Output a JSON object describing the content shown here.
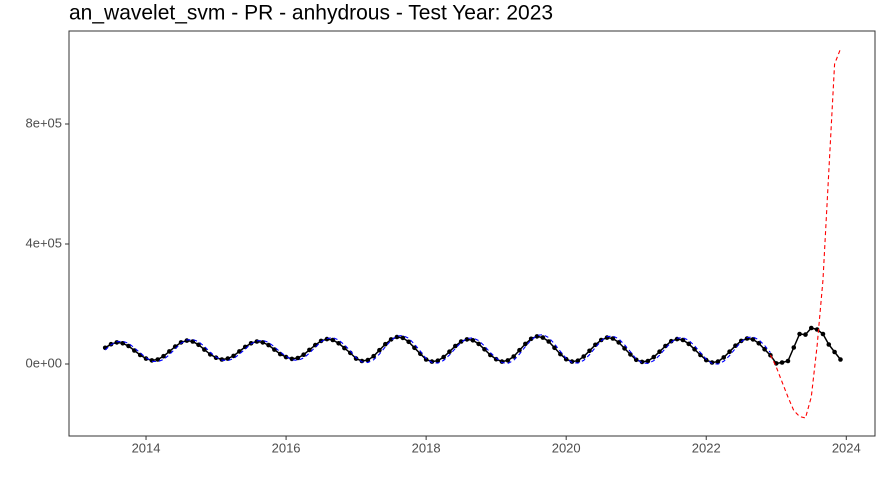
{
  "chart_data": {
    "type": "line",
    "title": "an_wavelet_svm - PR - anhydrous - Test Year: 2023",
    "x": [
      2013.417,
      2013.5,
      2013.583,
      2013.667,
      2013.75,
      2013.833,
      2013.917,
      2014,
      2014.083,
      2014.167,
      2014.25,
      2014.333,
      2014.417,
      2014.5,
      2014.583,
      2014.667,
      2014.75,
      2014.833,
      2014.917,
      2015,
      2015.083,
      2015.167,
      2015.25,
      2015.333,
      2015.417,
      2015.5,
      2015.583,
      2015.667,
      2015.75,
      2015.833,
      2015.917,
      2016,
      2016.083,
      2016.167,
      2016.25,
      2016.333,
      2016.417,
      2016.5,
      2016.583,
      2016.667,
      2016.75,
      2016.833,
      2016.917,
      2017,
      2017.083,
      2017.167,
      2017.25,
      2017.333,
      2017.417,
      2017.5,
      2017.583,
      2017.667,
      2017.75,
      2017.833,
      2017.917,
      2018,
      2018.083,
      2018.167,
      2018.25,
      2018.333,
      2018.417,
      2018.5,
      2018.583,
      2018.667,
      2018.75,
      2018.833,
      2018.917,
      2019,
      2019.083,
      2019.167,
      2019.25,
      2019.333,
      2019.417,
      2019.5,
      2019.583,
      2019.667,
      2019.75,
      2019.833,
      2019.917,
      2020,
      2020.083,
      2020.167,
      2020.25,
      2020.333,
      2020.417,
      2020.5,
      2020.583,
      2020.667,
      2020.75,
      2020.833,
      2020.917,
      2021,
      2021.083,
      2021.167,
      2021.25,
      2021.333,
      2021.417,
      2021.5,
      2021.583,
      2021.667,
      2021.75,
      2021.833,
      2021.917,
      2022,
      2022.083,
      2022.167,
      2022.25,
      2022.333,
      2022.417,
      2022.5,
      2022.583,
      2022.667,
      2022.75,
      2022.833,
      2022.917,
      2023,
      2023.083,
      2023.167,
      2023.25,
      2023.333,
      2023.417,
      2023.5,
      2023.583,
      2023.667,
      2023.75,
      2023.833,
      2023.917
    ],
    "series": [
      {
        "color": "#000000",
        "line_style": "solid",
        "markers": true,
        "values": [
          54000,
          66000,
          72000,
          69000,
          60000,
          45000,
          30000,
          18000,
          12000,
          15000,
          26000,
          42000,
          58000,
          72000,
          78000,
          75000,
          64000,
          48000,
          32000,
          21000,
          15000,
          18000,
          27000,
          42000,
          57000,
          69000,
          75000,
          72000,
          63000,
          48000,
          33000,
          23000,
          17000,
          20000,
          31000,
          47000,
          63000,
          77000,
          83000,
          80000,
          69000,
          53000,
          37000,
          18000,
          10000,
          13000,
          26000,
          46000,
          66000,
          82000,
          90000,
          87000,
          74000,
          54000,
          34000,
          15000,
          8000,
          11000,
          23000,
          41000,
          60000,
          75000,
          82000,
          79000,
          67000,
          49000,
          30000,
          16000,
          8000,
          12000,
          25000,
          46000,
          67000,
          84000,
          92000,
          88000,
          75000,
          54000,
          33000,
          16000,
          8000,
          11000,
          25000,
          44000,
          64000,
          80000,
          88000,
          85000,
          72000,
          52000,
          32000,
          14000,
          7000,
          10000,
          23000,
          41000,
          60000,
          76000,
          83000,
          80000,
          67000,
          49000,
          30000,
          13000,
          5000,
          8000,
          22000,
          41000,
          61000,
          77000,
          85000,
          82000,
          69000,
          49000,
          29000,
          2000,
          5000,
          10000,
          55000,
          100000,
          98000,
          120000,
          115000,
          100000,
          65000,
          40000,
          15000
        ]
      },
      {
        "color": "#0000ff",
        "line_style": "dashed",
        "markers": false,
        "values": [
          47000,
          64000,
          74000,
          76000,
          69000,
          54000,
          37000,
          21000,
          9000,
          8000,
          15000,
          31000,
          51000,
          69000,
          80000,
          82000,
          74000,
          59000,
          39000,
          23000,
          13000,
          11000,
          18000,
          33000,
          50000,
          67000,
          77000,
          79000,
          72000,
          57000,
          40000,
          26000,
          14000,
          12000,
          20000,
          36000,
          56000,
          74000,
          85000,
          88000,
          80000,
          64000,
          44000,
          21000,
          7000,
          5000,
          14000,
          33000,
          57000,
          79000,
          93000,
          95000,
          86000,
          66000,
          43000,
          18000,
          5000,
          3000,
          12000,
          30000,
          52000,
          72000,
          85000,
          87000,
          78000,
          60000,
          38000,
          20000,
          5000,
          2000,
          12000,
          33000,
          58000,
          80000,
          95000,
          98000,
          88000,
          67000,
          42000,
          19000,
          5000,
          3000,
          12000,
          31000,
          55000,
          77000,
          91000,
          93000,
          84000,
          64000,
          41000,
          17000,
          4000,
          2000,
          11000,
          29000,
          52000,
          72000,
          86000,
          88000,
          79000,
          61000,
          38000,
          16000,
          2000,
          -400,
          9000,
          28000,
          52000,
          74000,
          88000,
          90000,
          81000,
          62000,
          38000,
          null,
          null,
          null,
          null,
          null,
          null,
          null,
          null,
          null,
          null,
          null,
          null
        ]
      },
      {
        "color": "#ff0000",
        "line_style": "dashed",
        "markers": false,
        "values": [
          null,
          null,
          null,
          null,
          null,
          null,
          null,
          null,
          null,
          null,
          null,
          null,
          null,
          null,
          null,
          null,
          null,
          null,
          null,
          null,
          null,
          null,
          null,
          null,
          null,
          null,
          null,
          null,
          null,
          null,
          null,
          null,
          null,
          null,
          null,
          null,
          null,
          null,
          null,
          null,
          null,
          null,
          null,
          null,
          null,
          null,
          null,
          null,
          null,
          null,
          null,
          null,
          null,
          null,
          null,
          null,
          null,
          null,
          null,
          null,
          null,
          null,
          null,
          null,
          null,
          null,
          null,
          null,
          null,
          null,
          null,
          null,
          null,
          null,
          null,
          null,
          null,
          null,
          null,
          null,
          null,
          null,
          null,
          null,
          null,
          null,
          null,
          null,
          null,
          null,
          null,
          null,
          null,
          null,
          null,
          null,
          null,
          null,
          null,
          null,
          null,
          null,
          null,
          null,
          null,
          null,
          null,
          null,
          null,
          null,
          null,
          null,
          null,
          null,
          30000,
          -10000,
          -60000,
          -110000,
          -155000,
          -175000,
          -180000,
          -110000,
          60000,
          280000,
          640000,
          1000000,
          1050000
        ]
      }
    ],
    "xlim": [
      2012.9,
      2024.41
    ],
    "xticks": [
      2014,
      2016,
      2018,
      2020,
      2022,
      2024
    ],
    "ylim": [
      -240000,
      1110000
    ],
    "yticks": [
      {
        "value": 0,
        "label": "0e+00"
      },
      {
        "value": 400000,
        "label": "4e+05"
      },
      {
        "value": 800000,
        "label": "8e+05"
      }
    ],
    "grid": false
  }
}
